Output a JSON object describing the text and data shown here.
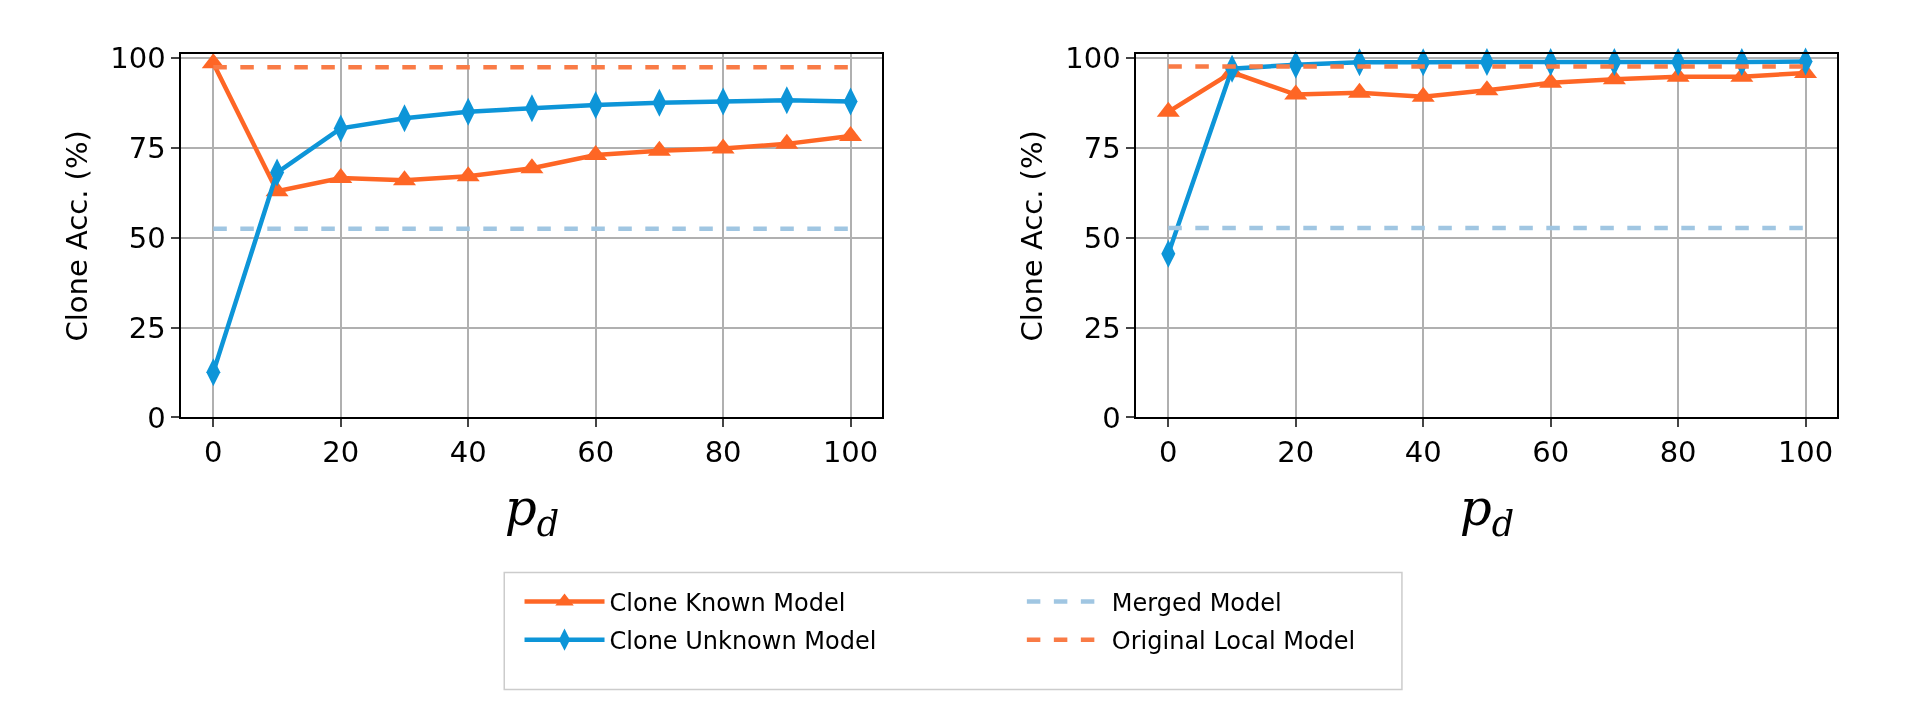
{
  "chart_data": [
    {
      "type": "line",
      "xlabel": "p$_{d}$",
      "ylabel": "Clone Acc. (%)",
      "x": [
        0,
        10,
        20,
        30,
        40,
        50,
        60,
        70,
        80,
        90,
        100
      ],
      "xlim": [
        -5,
        105
      ],
      "ylim": [
        0,
        101
      ],
      "xticks": [
        0,
        20,
        40,
        60,
        80,
        100
      ],
      "yticks": [
        0,
        25,
        50,
        75,
        100
      ],
      "grid": true,
      "legend": "bottom",
      "series": [
        {
          "name": "Clone Known Model",
          "color": "#fe6625",
          "marker": "triangle",
          "line_style": "solid",
          "values": [
            98.5,
            62.9,
            66.6,
            66.0,
            67.1,
            69.3,
            73.0,
            74.2,
            74.8,
            76.1,
            78.3
          ]
        },
        {
          "name": "Clone Unknown Model",
          "color": "#0d95d8",
          "marker": "diamond",
          "line_style": "solid",
          "values": [
            12.6,
            68.1,
            80.4,
            83.2,
            85.0,
            86.0,
            86.9,
            87.5,
            87.9,
            88.2,
            87.9
          ]
        },
        {
          "name": "Merged Model",
          "color": "#a0c6e2",
          "marker": "none",
          "line_style": "dashed",
          "values": [
            52.5,
            52.5,
            52.5,
            52.5,
            52.5,
            52.5,
            52.5,
            52.5,
            52.5,
            52.5,
            52.5
          ]
        },
        {
          "name": "Original Local Model",
          "color": "#f97b46",
          "marker": "none",
          "line_style": "dashed",
          "values": [
            97.4,
            97.4,
            97.4,
            97.4,
            97.4,
            97.4,
            97.4,
            97.4,
            97.4,
            97.4,
            97.4
          ]
        }
      ]
    },
    {
      "type": "line",
      "xlabel": "p$_{d}$",
      "ylabel": "Clone Acc. (%)",
      "x": [
        0,
        10,
        20,
        30,
        40,
        50,
        60,
        70,
        80,
        90,
        100
      ],
      "xlim": [
        -5,
        105
      ],
      "ylim": [
        0,
        101
      ],
      "xticks": [
        0,
        20,
        40,
        60,
        80,
        100
      ],
      "yticks": [
        0,
        25,
        50,
        75,
        100
      ],
      "grid": true,
      "series": [
        {
          "name": "Clone Known Model",
          "color": "#fe6625",
          "marker": "triangle",
          "line_style": "solid",
          "values": [
            85.0,
            96.0,
            89.8,
            90.3,
            89.2,
            91.0,
            93.1,
            94.1,
            94.8,
            94.8,
            95.8
          ]
        },
        {
          "name": "Clone Unknown Model",
          "color": "#0d95d8",
          "marker": "diamond",
          "line_style": "solid",
          "values": [
            45.5,
            97.0,
            98.1,
            98.8,
            98.8,
            98.9,
            98.9,
            98.9,
            98.9,
            98.9,
            99.0
          ]
        },
        {
          "name": "Merged Model",
          "color": "#a0c6e2",
          "marker": "none",
          "line_style": "dashed",
          "values": [
            52.7,
            52.7,
            52.7,
            52.7,
            52.7,
            52.7,
            52.7,
            52.7,
            52.7,
            52.7,
            52.7
          ]
        },
        {
          "name": "Original Local Model",
          "color": "#f97b46",
          "marker": "none",
          "line_style": "dashed",
          "values": [
            97.6,
            97.6,
            97.6,
            97.6,
            97.6,
            97.6,
            97.6,
            97.6,
            97.6,
            97.6,
            97.6
          ]
        }
      ]
    }
  ]
}
